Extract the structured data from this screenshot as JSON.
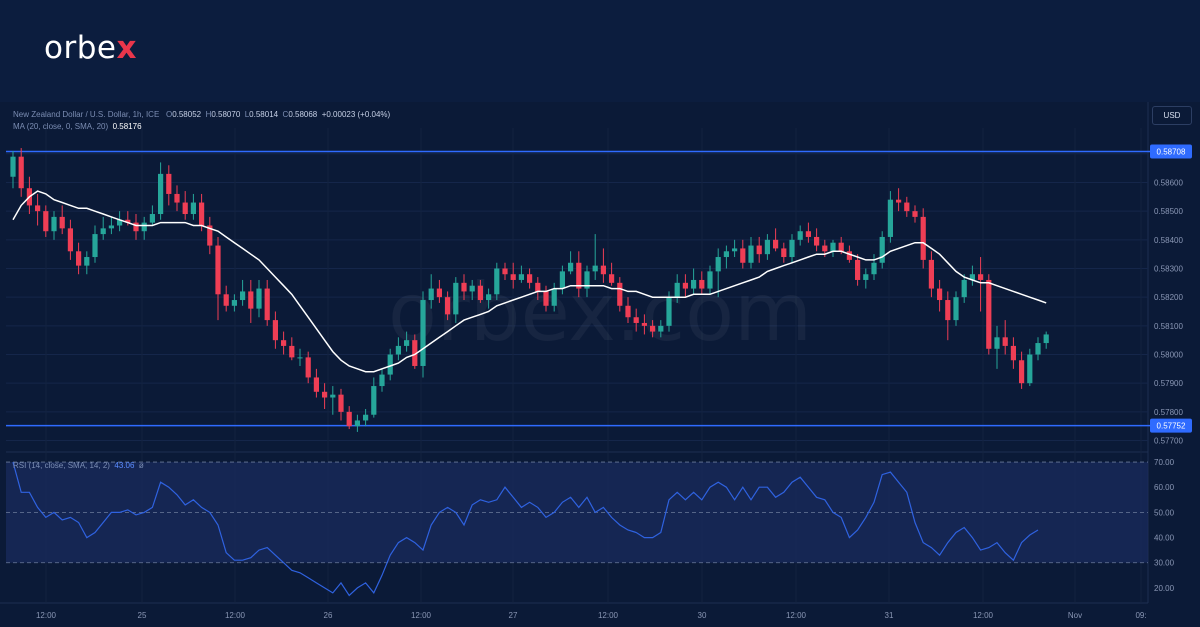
{
  "brand": {
    "logo_main": "orbe",
    "logo_accent": "x",
    "watermark": "orbex.com"
  },
  "legend": {
    "symbol": "New Zealand Dollar / U.S. Dollar, 1h, ICE",
    "o_label": "O",
    "o": "0.58052",
    "h_label": "H",
    "h": "0.58070",
    "l_label": "L",
    "l": "0.58014",
    "c_label": "C",
    "c": "0.58068",
    "change": "+0.00023 (+0.04%)",
    "ma_label": "MA (20, close, 0, SMA, 20)",
    "ma_value": "0.58176",
    "rsi_label": "RSI (14, close, SMA, 14, 2)",
    "rsi_value": "43.06",
    "rsi_extra": "ø"
  },
  "currency_button": "USD",
  "colors": {
    "up": "#26a69a",
    "down": "#ef3e55",
    "ma": "#ffffff",
    "levels": "#2f6bff",
    "rsi": "#2f62e0",
    "background": "#0b1a37"
  },
  "chart_data": {
    "type": "candlestick",
    "ylim": [
      0.5766,
      0.5879
    ],
    "price_ticks": [
      "0.58700",
      "0.58600",
      "0.58500",
      "0.58400",
      "0.58300",
      "0.58200",
      "0.58100",
      "0.58000",
      "0.57900",
      "0.57800",
      "0.57700"
    ],
    "levels": [
      {
        "value": 0.58708,
        "label": "0.58708"
      },
      {
        "value": 0.57752,
        "label": "0.57752"
      }
    ],
    "time_labels": [
      "12:00",
      "25",
      "12:00",
      "26",
      "12:00",
      "27",
      "12:00",
      "30",
      "12:00",
      "31",
      "12:00",
      "Nov",
      "09:"
    ],
    "candles": [
      [
        0.5862,
        0.5871,
        0.5858,
        0.5869
      ],
      [
        0.5869,
        0.5872,
        0.5855,
        0.5858
      ],
      [
        0.5858,
        0.5862,
        0.5849,
        0.5852
      ],
      [
        0.5852,
        0.5856,
        0.5845,
        0.585
      ],
      [
        0.585,
        0.5852,
        0.5841,
        0.5843
      ],
      [
        0.5843,
        0.585,
        0.584,
        0.5848
      ],
      [
        0.5848,
        0.5852,
        0.5842,
        0.5844
      ],
      [
        0.5844,
        0.5847,
        0.5833,
        0.5836
      ],
      [
        0.5836,
        0.5839,
        0.5828,
        0.5831
      ],
      [
        0.5831,
        0.5836,
        0.5828,
        0.5834
      ],
      [
        0.5834,
        0.5845,
        0.5832,
        0.5842
      ],
      [
        0.5842,
        0.5848,
        0.584,
        0.5844
      ],
      [
        0.5844,
        0.5848,
        0.5842,
        0.5845
      ],
      [
        0.5845,
        0.585,
        0.5843,
        0.5847
      ],
      [
        0.5847,
        0.585,
        0.5845,
        0.5846
      ],
      [
        0.5846,
        0.5849,
        0.584,
        0.5843
      ],
      [
        0.5843,
        0.5848,
        0.584,
        0.5846
      ],
      [
        0.5846,
        0.5852,
        0.5845,
        0.5849
      ],
      [
        0.5849,
        0.5867,
        0.5847,
        0.5863
      ],
      [
        0.5863,
        0.5866,
        0.5852,
        0.5856
      ],
      [
        0.5856,
        0.5859,
        0.585,
        0.5853
      ],
      [
        0.5853,
        0.5857,
        0.5847,
        0.5849
      ],
      [
        0.5849,
        0.5856,
        0.5847,
        0.5853
      ],
      [
        0.5853,
        0.5856,
        0.5843,
        0.5845
      ],
      [
        0.5845,
        0.5848,
        0.5835,
        0.5838
      ],
      [
        0.5838,
        0.5841,
        0.5812,
        0.5821
      ],
      [
        0.5821,
        0.5824,
        0.5815,
        0.5817
      ],
      [
        0.5817,
        0.5821,
        0.5815,
        0.5819
      ],
      [
        0.5819,
        0.5826,
        0.5817,
        0.5822
      ],
      [
        0.5822,
        0.5826,
        0.5811,
        0.5816
      ],
      [
        0.5816,
        0.5826,
        0.5813,
        0.5823
      ],
      [
        0.5823,
        0.5826,
        0.581,
        0.5812
      ],
      [
        0.5812,
        0.5815,
        0.5802,
        0.5805
      ],
      [
        0.5805,
        0.5808,
        0.58,
        0.5803
      ],
      [
        0.5803,
        0.5806,
        0.5798,
        0.5799
      ],
      [
        0.5799,
        0.5802,
        0.5796,
        0.5799
      ],
      [
        0.5799,
        0.5801,
        0.579,
        0.5792
      ],
      [
        0.5792,
        0.5795,
        0.5785,
        0.5787
      ],
      [
        0.5787,
        0.579,
        0.5781,
        0.5785
      ],
      [
        0.5785,
        0.5789,
        0.5779,
        0.5786
      ],
      [
        0.5786,
        0.5788,
        0.5777,
        0.578
      ],
      [
        0.578,
        0.5782,
        0.5774,
        0.5775
      ],
      [
        0.5775,
        0.5779,
        0.5773,
        0.5777
      ],
      [
        0.5777,
        0.5781,
        0.5775,
        0.5779
      ],
      [
        0.5779,
        0.5792,
        0.5778,
        0.5789
      ],
      [
        0.5789,
        0.5795,
        0.5787,
        0.5793
      ],
      [
        0.5793,
        0.5802,
        0.5791,
        0.58
      ],
      [
        0.58,
        0.5806,
        0.5798,
        0.5803
      ],
      [
        0.5803,
        0.5808,
        0.5801,
        0.5805
      ],
      [
        0.5805,
        0.5807,
        0.5795,
        0.5796
      ],
      [
        0.5796,
        0.5822,
        0.5792,
        0.5819
      ],
      [
        0.5819,
        0.5828,
        0.5816,
        0.5823
      ],
      [
        0.5823,
        0.5826,
        0.5818,
        0.582
      ],
      [
        0.582,
        0.5822,
        0.5812,
        0.5814
      ],
      [
        0.5814,
        0.5827,
        0.5811,
        0.5825
      ],
      [
        0.5825,
        0.5828,
        0.5819,
        0.5822
      ],
      [
        0.5822,
        0.5826,
        0.5819,
        0.5824
      ],
      [
        0.5824,
        0.5826,
        0.5818,
        0.5819
      ],
      [
        0.5819,
        0.5823,
        0.5816,
        0.5821
      ],
      [
        0.5821,
        0.5832,
        0.5819,
        0.583
      ],
      [
        0.583,
        0.5832,
        0.5826,
        0.5828
      ],
      [
        0.5828,
        0.5832,
        0.5823,
        0.5826
      ],
      [
        0.5826,
        0.5831,
        0.5825,
        0.5828
      ],
      [
        0.5828,
        0.583,
        0.5823,
        0.5825
      ],
      [
        0.5825,
        0.5827,
        0.5819,
        0.5822
      ],
      [
        0.5822,
        0.5824,
        0.5815,
        0.5817
      ],
      [
        0.5817,
        0.5825,
        0.5815,
        0.5823
      ],
      [
        0.5823,
        0.5831,
        0.5821,
        0.5829
      ],
      [
        0.5829,
        0.5836,
        0.5828,
        0.5832
      ],
      [
        0.5832,
        0.5836,
        0.582,
        0.5823
      ],
      [
        0.5823,
        0.5831,
        0.582,
        0.5829
      ],
      [
        0.5829,
        0.5842,
        0.5826,
        0.5831
      ],
      [
        0.5831,
        0.5837,
        0.5825,
        0.5828
      ],
      [
        0.5828,
        0.5832,
        0.5824,
        0.5825
      ],
      [
        0.5825,
        0.5827,
        0.5815,
        0.5817
      ],
      [
        0.5817,
        0.582,
        0.5811,
        0.5813
      ],
      [
        0.5813,
        0.5816,
        0.5808,
        0.5811
      ],
      [
        0.5811,
        0.5814,
        0.5807,
        0.581
      ],
      [
        0.581,
        0.5812,
        0.5806,
        0.5808
      ],
      [
        0.5808,
        0.5812,
        0.5806,
        0.581
      ],
      [
        0.581,
        0.5822,
        0.5808,
        0.582
      ],
      [
        0.582,
        0.5828,
        0.5818,
        0.5825
      ],
      [
        0.5825,
        0.5828,
        0.582,
        0.5823
      ],
      [
        0.5823,
        0.583,
        0.5821,
        0.5826
      ],
      [
        0.5826,
        0.5829,
        0.5821,
        0.5823
      ],
      [
        0.5823,
        0.5831,
        0.5821,
        0.5829
      ],
      [
        0.5829,
        0.5837,
        0.582,
        0.5834
      ],
      [
        0.5834,
        0.5838,
        0.583,
        0.5836
      ],
      [
        0.5836,
        0.584,
        0.5834,
        0.5837
      ],
      [
        0.5837,
        0.584,
        0.583,
        0.5832
      ],
      [
        0.5832,
        0.5841,
        0.583,
        0.5838
      ],
      [
        0.5838,
        0.5841,
        0.5832,
        0.5835
      ],
      [
        0.5835,
        0.5842,
        0.5833,
        0.584
      ],
      [
        0.584,
        0.5844,
        0.5836,
        0.5837
      ],
      [
        0.5837,
        0.5839,
        0.5832,
        0.5834
      ],
      [
        0.5834,
        0.5842,
        0.5832,
        0.584
      ],
      [
        0.584,
        0.5845,
        0.5838,
        0.5843
      ],
      [
        0.5843,
        0.5846,
        0.5839,
        0.5841
      ],
      [
        0.5841,
        0.5844,
        0.5836,
        0.5838
      ],
      [
        0.5838,
        0.584,
        0.5834,
        0.5836
      ],
      [
        0.5836,
        0.584,
        0.5834,
        0.5839
      ],
      [
        0.5839,
        0.5841,
        0.5835,
        0.5836
      ],
      [
        0.5836,
        0.5838,
        0.5832,
        0.5833
      ],
      [
        0.5833,
        0.5835,
        0.5824,
        0.5826
      ],
      [
        0.5826,
        0.583,
        0.5823,
        0.5828
      ],
      [
        0.5828,
        0.5835,
        0.5826,
        0.5832
      ],
      [
        0.5832,
        0.5843,
        0.583,
        0.5841
      ],
      [
        0.5841,
        0.5857,
        0.5839,
        0.5854
      ],
      [
        0.5854,
        0.5858,
        0.585,
        0.5853
      ],
      [
        0.5853,
        0.5855,
        0.5848,
        0.585
      ],
      [
        0.585,
        0.5852,
        0.5846,
        0.5848
      ],
      [
        0.5848,
        0.5851,
        0.583,
        0.5833
      ],
      [
        0.5833,
        0.5836,
        0.582,
        0.5823
      ],
      [
        0.5823,
        0.5826,
        0.5815,
        0.5819
      ],
      [
        0.5819,
        0.5822,
        0.5805,
        0.5812
      ],
      [
        0.5812,
        0.5822,
        0.581,
        0.582
      ],
      [
        0.582,
        0.5828,
        0.5818,
        0.5826
      ],
      [
        0.5826,
        0.5831,
        0.5824,
        0.5828
      ],
      [
        0.5828,
        0.5834,
        0.5815,
        0.5826
      ],
      [
        0.5826,
        0.5828,
        0.58,
        0.5802
      ],
      [
        0.5802,
        0.581,
        0.5795,
        0.5806
      ],
      [
        0.5806,
        0.5812,
        0.58,
        0.5803
      ],
      [
        0.5803,
        0.5806,
        0.5795,
        0.5798
      ],
      [
        0.5798,
        0.5801,
        0.5788,
        0.579
      ],
      [
        0.579,
        0.5802,
        0.5789,
        0.58
      ],
      [
        0.58,
        0.5806,
        0.5798,
        0.5804
      ],
      [
        0.5804,
        0.5808,
        0.5802,
        0.5807
      ]
    ],
    "ma": [
      0.5847,
      0.5852,
      0.5855,
      0.5857,
      0.5856,
      0.5854,
      0.5853,
      0.5852,
      0.5851,
      0.5851,
      0.585,
      0.5849,
      0.5848,
      0.5847,
      0.5846,
      0.5845,
      0.5845,
      0.5845,
      0.5846,
      0.5846,
      0.5846,
      0.5846,
      0.5845,
      0.5845,
      0.5844,
      0.5843,
      0.5841,
      0.5839,
      0.5837,
      0.5835,
      0.5833,
      0.583,
      0.5827,
      0.5824,
      0.5821,
      0.5817,
      0.5813,
      0.5809,
      0.5805,
      0.5801,
      0.5798,
      0.5796,
      0.5795,
      0.5794,
      0.5794,
      0.5795,
      0.5796,
      0.5797,
      0.5799,
      0.58,
      0.5802,
      0.5804,
      0.5806,
      0.5808,
      0.581,
      0.5812,
      0.5813,
      0.5814,
      0.5815,
      0.5817,
      0.5818,
      0.5819,
      0.582,
      0.5821,
      0.5822,
      0.5822,
      0.5823,
      0.5823,
      0.5824,
      0.5824,
      0.5824,
      0.5824,
      0.5824,
      0.5823,
      0.5823,
      0.5822,
      0.5822,
      0.5821,
      0.582,
      0.582,
      0.582,
      0.582,
      0.582,
      0.5821,
      0.5821,
      0.5821,
      0.5822,
      0.5823,
      0.5824,
      0.5825,
      0.5826,
      0.5827,
      0.5829,
      0.583,
      0.5831,
      0.5832,
      0.5833,
      0.5834,
      0.5835,
      0.5835,
      0.5836,
      0.5836,
      0.5835,
      0.5834,
      0.5833,
      0.5833,
      0.5834,
      0.5836,
      0.5837,
      0.5838,
      0.5839,
      0.5839,
      0.5837,
      0.5835,
      0.5832,
      0.5829,
      0.5827,
      0.5826,
      0.5825,
      0.5825,
      0.5824,
      0.5823,
      0.5822,
      0.5821,
      0.582,
      0.5819,
      0.5818
    ]
  },
  "rsi_data": {
    "ylim": [
      14,
      74
    ],
    "levels": [
      70,
      50,
      30
    ],
    "ticks": [
      "70.00",
      "60.00",
      "50.00",
      "40.00",
      "30.00",
      "20.00"
    ],
    "values": [
      70,
      58,
      58,
      52,
      48,
      50,
      47,
      48,
      46,
      40,
      42,
      46,
      50,
      50,
      51,
      49,
      50,
      52,
      62,
      60,
      57,
      53,
      55,
      52,
      50,
      45,
      34,
      31,
      31,
      32,
      35,
      36,
      33,
      30,
      27,
      26,
      24,
      22,
      20,
      18,
      22,
      17,
      20,
      22,
      18,
      25,
      33,
      38,
      40,
      38,
      35,
      45,
      50,
      52,
      50,
      45,
      53,
      55,
      54,
      55,
      60,
      56,
      52,
      54,
      52,
      48,
      50,
      54,
      56,
      52,
      56,
      50,
      52,
      48,
      45,
      43,
      42,
      40,
      40,
      42,
      55,
      58,
      55,
      58,
      55,
      60,
      62,
      60,
      55,
      60,
      55,
      60,
      60,
      56,
      58,
      62,
      64,
      60,
      56,
      55,
      50,
      48,
      40,
      43,
      48,
      54,
      65,
      66,
      62,
      58,
      46,
      38,
      36,
      33,
      38,
      42,
      44,
      40,
      35,
      36,
      38,
      34,
      31,
      38,
      41,
      43
    ]
  }
}
